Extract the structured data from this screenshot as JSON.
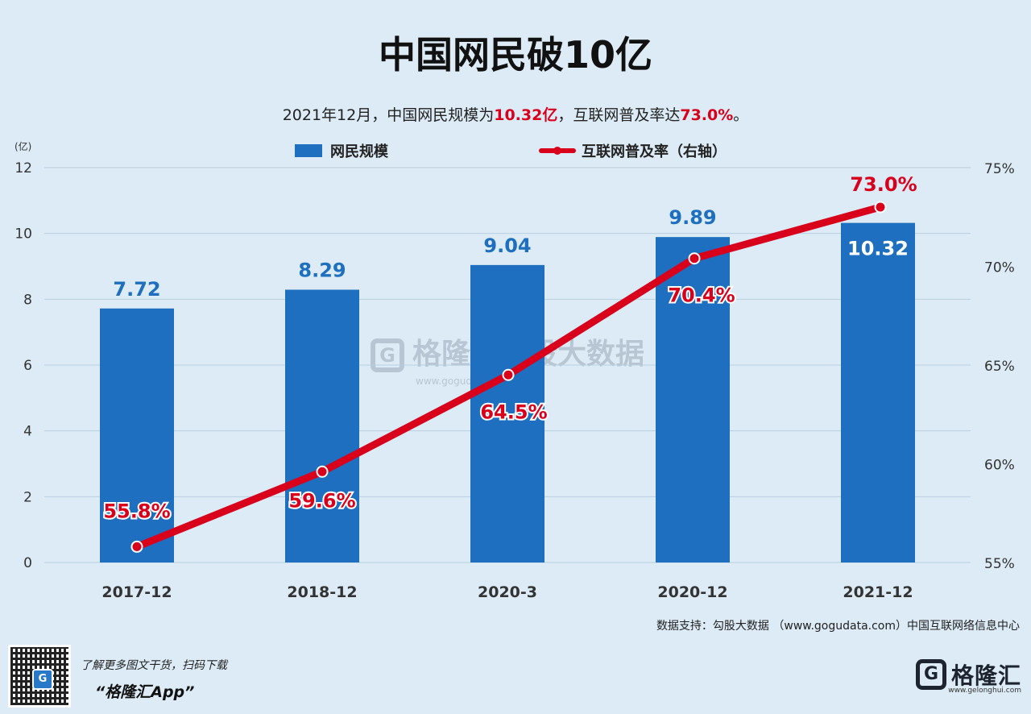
{
  "header": {
    "title": "中国网民破10亿",
    "subtitle_parts": [
      "2021年12月，中国网民规模为",
      "10.32亿",
      "，互联网普及率达",
      "73.0%",
      "。"
    ]
  },
  "chart_data": {
    "type": "bar",
    "categories": [
      "2017-12",
      "2018-12",
      "2020-3",
      "2020-12",
      "2021-12"
    ],
    "y_unit_label": "(亿)",
    "ylim": [
      0,
      12
    ],
    "yticks": [
      "0",
      "2",
      "4",
      "6",
      "8",
      "10",
      "12"
    ],
    "y2lim": [
      55,
      75
    ],
    "y2ticks": [
      "55%",
      "60%",
      "65%",
      "70%",
      "75%"
    ],
    "series": [
      {
        "name": "网民规模",
        "type": "bar",
        "color": "#1f6fc0",
        "values": [
          7.72,
          8.29,
          9.04,
          9.89,
          10.32
        ],
        "labels": [
          "7.72",
          "8.29",
          "9.04",
          "9.89",
          "10.32"
        ]
      },
      {
        "name": "互联网普及率（右轴）",
        "type": "line",
        "axis": "right",
        "color": "#d9001b",
        "values": [
          55.8,
          59.6,
          64.5,
          70.4,
          73.0
        ],
        "labels": [
          "55.8%",
          "59.6%",
          "64.5%",
          "70.4%",
          "73.0%"
        ]
      }
    ],
    "grid": true,
    "legend_position": "top"
  },
  "watermark": {
    "name": "格隆汇勾股大数据",
    "url": "www.gogudata.com"
  },
  "source": "数据支持：勾股大数据 （www.gogudata.com）中国互联网络信息中心",
  "footer": {
    "promo_line": "了解更多图文干货，扫码下载",
    "app_name": "“格隆汇App”",
    "logo_text": "格隆汇",
    "logo_url": "www.gelonghui.com",
    "qr_letter": "G"
  }
}
